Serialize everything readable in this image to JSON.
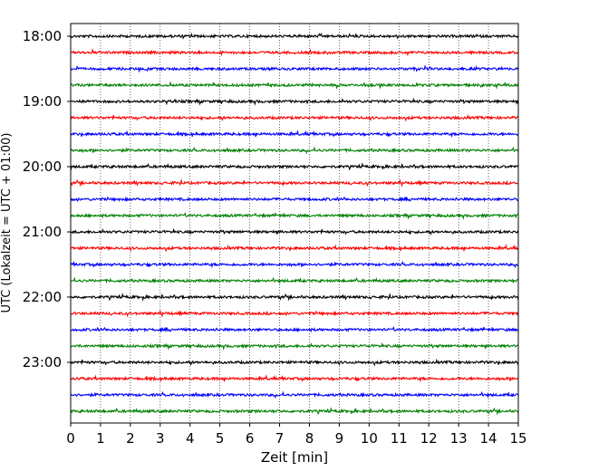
{
  "chart_data": {
    "type": "line",
    "xlabel": "Zeit  [min]",
    "ylabel": "UTC (Lokalzeit = UTC + 01:00)",
    "xlim": [
      0,
      15
    ],
    "x_ticks": [
      "0",
      "1",
      "2",
      "3",
      "4",
      "5",
      "6",
      "7",
      "8",
      "9",
      "10",
      "11",
      "12",
      "13",
      "14",
      "15"
    ],
    "y_tick_labels": [
      "18:00",
      "19:00",
      "20:00",
      "21:00",
      "22:00",
      "23:00"
    ],
    "trace_interval_minutes": 15,
    "trace_start": "18:00",
    "trace_count": 24,
    "trace_colors": [
      "#000000",
      "#ff0000",
      "#0000ff",
      "#008000"
    ],
    "grid": "vertical dotted at each minute"
  }
}
